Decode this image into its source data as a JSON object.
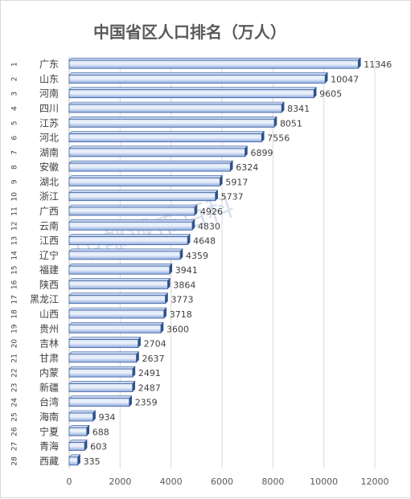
{
  "chart_data": {
    "type": "bar",
    "orientation": "horizontal",
    "title": "中国省区人口排名（万人）",
    "watermark": "中部城市百科",
    "ranks": [
      "1",
      "2",
      "3",
      "4",
      "5",
      "6",
      "7",
      "8",
      "9",
      "10",
      "11",
      "12",
      "13",
      "14",
      "15",
      "16",
      "17",
      "18",
      "19",
      "20",
      "21",
      "22",
      "23",
      "24",
      "25",
      "26",
      "27",
      "28"
    ],
    "categories": [
      "广东",
      "山东",
      "河南",
      "四川",
      "江苏",
      "河北",
      "湖南",
      "安徽",
      "湖北",
      "浙江",
      "广西",
      "云南",
      "江西",
      "辽宁",
      "福建",
      "陕西",
      "黑龙江",
      "山西",
      "贵州",
      "吉林",
      "甘肃",
      "内蒙",
      "新疆",
      "台湾",
      "海南",
      "宁夏",
      "青海",
      "西藏"
    ],
    "values": [
      11346,
      10047,
      9605,
      8341,
      8051,
      7556,
      6899,
      6324,
      5917,
      5737,
      4926,
      4830,
      4648,
      4359,
      3941,
      3864,
      3773,
      3718,
      3600,
      2704,
      2637,
      2491,
      2487,
      2359,
      934,
      688,
      603,
      335
    ],
    "value_labels": [
      "11346",
      "10047",
      "9605",
      "8341",
      "8051",
      "7556",
      "6899",
      "6324",
      "5917",
      "5737",
      "4926",
      "4830",
      "4648",
      "4359",
      "3941",
      "3864",
      "3773",
      "3718",
      "3600",
      "2704",
      "2637",
      "2491",
      "2487",
      "2359",
      "934",
      "688",
      "603",
      "335"
    ],
    "xlim": [
      0,
      12000
    ],
    "x_ticks": [
      0,
      2000,
      4000,
      6000,
      8000,
      10000,
      12000
    ],
    "x_tick_labels": [
      "0",
      "2000",
      "4000",
      "6000",
      "8000",
      "10000",
      "12000"
    ],
    "grid": true,
    "legend": "none",
    "colors": {
      "bar_fill_light": "#dbe5f7",
      "bar_fill_dark": "#8eaadf",
      "bar_edge": "#3a5d9c",
      "bar_top": "#c7d6f0",
      "bar_side": "#2f4f86",
      "gridline": "#d9d9d9"
    }
  }
}
